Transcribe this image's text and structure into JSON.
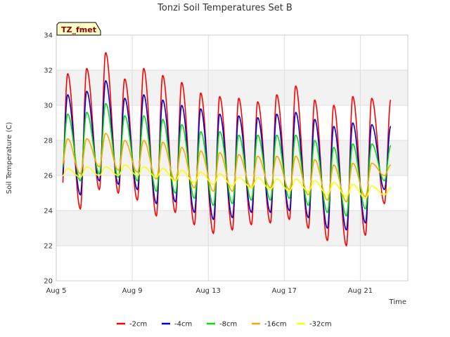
{
  "chart_data": {
    "type": "line",
    "title": "Tonzi Soil Temperatures Set B",
    "xlabel": "Time",
    "ylabel": "Soil Temperature (C)",
    "badge": "TZ_fmet",
    "ylim": [
      20,
      34
    ],
    "xlim": [
      5,
      23.5
    ],
    "yticks": [
      20,
      22,
      24,
      26,
      28,
      30,
      32,
      34
    ],
    "xticks": [
      5,
      9,
      13,
      17,
      21
    ],
    "xtick_labels": [
      "Aug 5",
      "Aug 9",
      "Aug 13",
      "Aug 17",
      "Aug 21"
    ],
    "grid": true,
    "legend_position": "bottom",
    "series": [
      {
        "name": "-2cm",
        "color": "#ff0000",
        "peaks": [
          31.8,
          32.1,
          33.0,
          31.5,
          32.1,
          31.7,
          31.3,
          30.7,
          30.5,
          30.4,
          30.2,
          30.6,
          31.1,
          30.3,
          30.0,
          30.5,
          30.4,
          30.3
        ],
        "troughs": [
          24.6,
          24.1,
          25.2,
          25.0,
          24.6,
          23.7,
          23.9,
          23.2,
          22.7,
          22.9,
          23.2,
          23.3,
          23.5,
          23.0,
          22.3,
          22.0,
          22.6,
          24.4
        ]
      },
      {
        "name": "-4cm",
        "color": "#0000cc",
        "peaks": [
          30.6,
          30.8,
          31.4,
          30.4,
          30.6,
          30.3,
          30.0,
          29.8,
          29.5,
          29.4,
          29.3,
          29.5,
          29.6,
          29.2,
          28.8,
          29.0,
          28.9,
          28.8
        ],
        "troughs": [
          25.3,
          24.9,
          25.7,
          25.5,
          25.2,
          24.4,
          24.5,
          23.9,
          23.5,
          23.6,
          23.9,
          23.9,
          24.0,
          23.6,
          23.0,
          22.9,
          23.3,
          25.2
        ]
      },
      {
        "name": "-8cm",
        "color": "#00dd00",
        "peaks": [
          29.5,
          29.6,
          30.1,
          29.4,
          29.4,
          29.2,
          28.9,
          28.5,
          28.5,
          28.3,
          28.3,
          28.3,
          28.3,
          28.0,
          27.6,
          27.8,
          27.8,
          27.7
        ],
        "troughs": [
          26.0,
          25.7,
          26.1,
          25.9,
          25.7,
          25.1,
          25.0,
          24.7,
          24.3,
          24.4,
          24.6,
          24.6,
          24.7,
          24.3,
          23.9,
          23.7,
          24.1,
          25.7
        ]
      },
      {
        "name": "-16cm",
        "color": "#ffa500",
        "peaks": [
          28.1,
          28.1,
          28.4,
          28.0,
          28.0,
          27.9,
          27.6,
          27.4,
          27.3,
          27.2,
          27.1,
          27.1,
          27.1,
          26.9,
          26.6,
          26.7,
          26.7,
          26.6
        ],
        "troughs": [
          26.4,
          26.1,
          26.5,
          26.3,
          26.2,
          25.8,
          25.7,
          25.3,
          25.1,
          25.1,
          25.3,
          25.3,
          25.2,
          24.9,
          24.6,
          24.5,
          24.8,
          26.0
        ]
      },
      {
        "name": "-32cm",
        "color": "#ffff00",
        "peaks": [
          26.4,
          26.5,
          26.5,
          26.6,
          26.5,
          26.4,
          26.3,
          26.2,
          26.1,
          25.9,
          25.9,
          25.8,
          25.8,
          25.7,
          25.6,
          25.5,
          25.4,
          25.3
        ],
        "troughs": [
          25.9,
          25.9,
          26.0,
          26.0,
          26.0,
          25.9,
          25.7,
          25.6,
          25.5,
          25.4,
          25.3,
          25.2,
          25.1,
          25.1,
          24.9,
          24.8,
          24.7,
          24.9
        ]
      }
    ]
  }
}
